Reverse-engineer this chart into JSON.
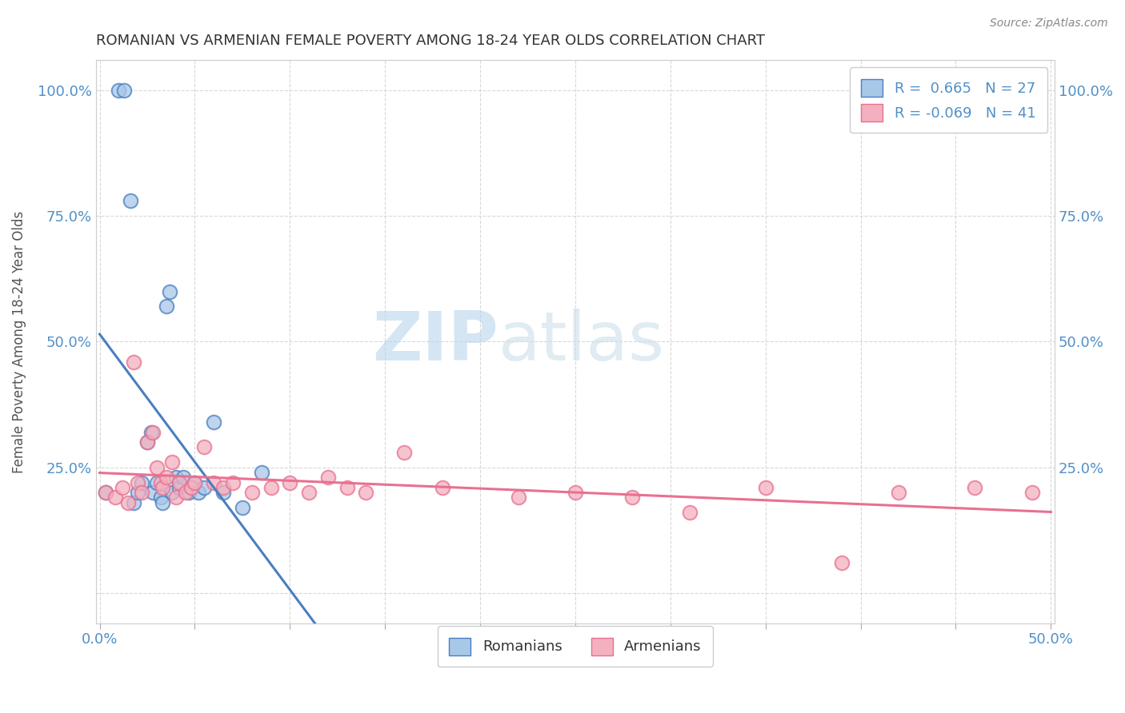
{
  "title": "ROMANIAN VS ARMENIAN FEMALE POVERTY AMONG 18-24 YEAR OLDS CORRELATION CHART",
  "source": "Source: ZipAtlas.com",
  "ylabel": "Female Poverty Among 18-24 Year Olds",
  "xlim": [
    -0.002,
    0.502
  ],
  "ylim": [
    -0.06,
    1.06
  ],
  "xticks": [
    0.0,
    0.05,
    0.1,
    0.15,
    0.2,
    0.25,
    0.3,
    0.35,
    0.4,
    0.45,
    0.5
  ],
  "xtick_labels": [
    "0.0%",
    "",
    "",
    "",
    "",
    "",
    "",
    "",
    "",
    "",
    "50.0%"
  ],
  "yticks": [
    0.0,
    0.25,
    0.5,
    0.75,
    1.0
  ],
  "ytick_labels": [
    "",
    "25.0%",
    "50.0%",
    "75.0%",
    "100.0%"
  ],
  "legend_romanian_R": "0.665",
  "legend_romanian_N": "27",
  "legend_armenian_R": "-0.069",
  "legend_armenian_N": "41",
  "romanian_color": "#a8c8e8",
  "armenian_color": "#f4b0be",
  "romanian_line_color": "#4a7fc0",
  "armenian_line_color": "#e87090",
  "watermark_zip": "ZIP",
  "watermark_atlas": "atlas",
  "background_color": "#ffffff",
  "grid_color": "#d8d8d8",
  "romanians_x": [
    0.003,
    0.01,
    0.013,
    0.016,
    0.018,
    0.02,
    0.022,
    0.025,
    0.027,
    0.028,
    0.03,
    0.032,
    0.033,
    0.035,
    0.037,
    0.038,
    0.04,
    0.042,
    0.044,
    0.047,
    0.05,
    0.052,
    0.055,
    0.06,
    0.065,
    0.075,
    0.085
  ],
  "romanians_y": [
    0.2,
    1.0,
    1.0,
    0.78,
    0.18,
    0.2,
    0.22,
    0.3,
    0.32,
    0.2,
    0.22,
    0.19,
    0.18,
    0.57,
    0.6,
    0.2,
    0.23,
    0.21,
    0.23,
    0.2,
    0.22,
    0.2,
    0.21,
    0.34,
    0.2,
    0.17,
    0.24
  ],
  "armenians_x": [
    0.003,
    0.008,
    0.012,
    0.015,
    0.018,
    0.02,
    0.022,
    0.025,
    0.028,
    0.03,
    0.032,
    0.033,
    0.035,
    0.038,
    0.04,
    0.042,
    0.045,
    0.048,
    0.05,
    0.055,
    0.06,
    0.065,
    0.07,
    0.08,
    0.09,
    0.1,
    0.11,
    0.12,
    0.13,
    0.14,
    0.16,
    0.18,
    0.22,
    0.25,
    0.28,
    0.31,
    0.35,
    0.39,
    0.42,
    0.46,
    0.49
  ],
  "armenians_y": [
    0.2,
    0.19,
    0.21,
    0.18,
    0.46,
    0.22,
    0.2,
    0.3,
    0.32,
    0.25,
    0.22,
    0.21,
    0.23,
    0.26,
    0.19,
    0.22,
    0.2,
    0.21,
    0.22,
    0.29,
    0.22,
    0.21,
    0.22,
    0.2,
    0.21,
    0.22,
    0.2,
    0.23,
    0.21,
    0.2,
    0.28,
    0.21,
    0.19,
    0.2,
    0.19,
    0.16,
    0.21,
    0.06,
    0.2,
    0.21,
    0.2
  ]
}
